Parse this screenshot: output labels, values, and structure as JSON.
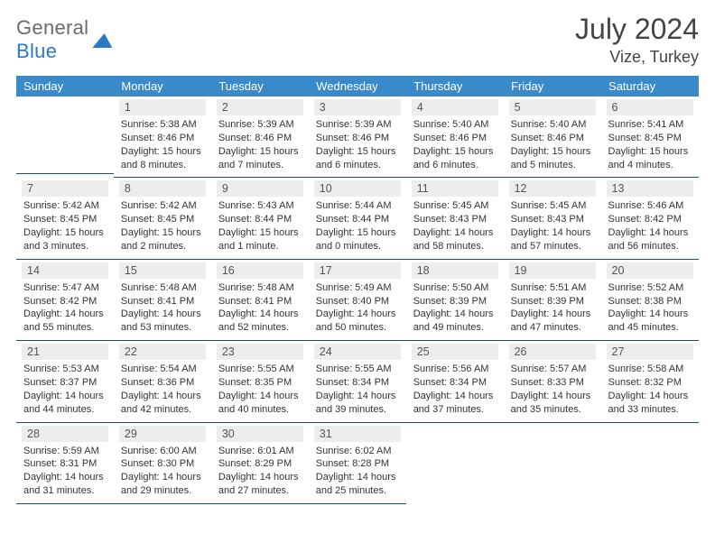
{
  "logo": {
    "text1": "General",
    "text2": "Blue"
  },
  "title": "July 2024",
  "location": "Vize, Turkey",
  "dow": [
    "Sunday",
    "Monday",
    "Tuesday",
    "Wednesday",
    "Thursday",
    "Friday",
    "Saturday"
  ],
  "colors": {
    "header_bg": "#3a8ac9",
    "header_text": "#ffffff",
    "daynum_bg": "#ededed",
    "rule": "#1b4f72",
    "logo_gray": "#6b6b6b",
    "logo_blue": "#2a7abf"
  },
  "weeks": [
    [
      null,
      {
        "n": "1",
        "sr": "5:38 AM",
        "ss": "8:46 PM",
        "dl": "15 hours and 8 minutes."
      },
      {
        "n": "2",
        "sr": "5:39 AM",
        "ss": "8:46 PM",
        "dl": "15 hours and 7 minutes."
      },
      {
        "n": "3",
        "sr": "5:39 AM",
        "ss": "8:46 PM",
        "dl": "15 hours and 6 minutes."
      },
      {
        "n": "4",
        "sr": "5:40 AM",
        "ss": "8:46 PM",
        "dl": "15 hours and 6 minutes."
      },
      {
        "n": "5",
        "sr": "5:40 AM",
        "ss": "8:46 PM",
        "dl": "15 hours and 5 minutes."
      },
      {
        "n": "6",
        "sr": "5:41 AM",
        "ss": "8:45 PM",
        "dl": "15 hours and 4 minutes."
      }
    ],
    [
      {
        "n": "7",
        "sr": "5:42 AM",
        "ss": "8:45 PM",
        "dl": "15 hours and 3 minutes."
      },
      {
        "n": "8",
        "sr": "5:42 AM",
        "ss": "8:45 PM",
        "dl": "15 hours and 2 minutes."
      },
      {
        "n": "9",
        "sr": "5:43 AM",
        "ss": "8:44 PM",
        "dl": "15 hours and 1 minute."
      },
      {
        "n": "10",
        "sr": "5:44 AM",
        "ss": "8:44 PM",
        "dl": "15 hours and 0 minutes."
      },
      {
        "n": "11",
        "sr": "5:45 AM",
        "ss": "8:43 PM",
        "dl": "14 hours and 58 minutes."
      },
      {
        "n": "12",
        "sr": "5:45 AM",
        "ss": "8:43 PM",
        "dl": "14 hours and 57 minutes."
      },
      {
        "n": "13",
        "sr": "5:46 AM",
        "ss": "8:42 PM",
        "dl": "14 hours and 56 minutes."
      }
    ],
    [
      {
        "n": "14",
        "sr": "5:47 AM",
        "ss": "8:42 PM",
        "dl": "14 hours and 55 minutes."
      },
      {
        "n": "15",
        "sr": "5:48 AM",
        "ss": "8:41 PM",
        "dl": "14 hours and 53 minutes."
      },
      {
        "n": "16",
        "sr": "5:48 AM",
        "ss": "8:41 PM",
        "dl": "14 hours and 52 minutes."
      },
      {
        "n": "17",
        "sr": "5:49 AM",
        "ss": "8:40 PM",
        "dl": "14 hours and 50 minutes."
      },
      {
        "n": "18",
        "sr": "5:50 AM",
        "ss": "8:39 PM",
        "dl": "14 hours and 49 minutes."
      },
      {
        "n": "19",
        "sr": "5:51 AM",
        "ss": "8:39 PM",
        "dl": "14 hours and 47 minutes."
      },
      {
        "n": "20",
        "sr": "5:52 AM",
        "ss": "8:38 PM",
        "dl": "14 hours and 45 minutes."
      }
    ],
    [
      {
        "n": "21",
        "sr": "5:53 AM",
        "ss": "8:37 PM",
        "dl": "14 hours and 44 minutes."
      },
      {
        "n": "22",
        "sr": "5:54 AM",
        "ss": "8:36 PM",
        "dl": "14 hours and 42 minutes."
      },
      {
        "n": "23",
        "sr": "5:55 AM",
        "ss": "8:35 PM",
        "dl": "14 hours and 40 minutes."
      },
      {
        "n": "24",
        "sr": "5:55 AM",
        "ss": "8:34 PM",
        "dl": "14 hours and 39 minutes."
      },
      {
        "n": "25",
        "sr": "5:56 AM",
        "ss": "8:34 PM",
        "dl": "14 hours and 37 minutes."
      },
      {
        "n": "26",
        "sr": "5:57 AM",
        "ss": "8:33 PM",
        "dl": "14 hours and 35 minutes."
      },
      {
        "n": "27",
        "sr": "5:58 AM",
        "ss": "8:32 PM",
        "dl": "14 hours and 33 minutes."
      }
    ],
    [
      {
        "n": "28",
        "sr": "5:59 AM",
        "ss": "8:31 PM",
        "dl": "14 hours and 31 minutes."
      },
      {
        "n": "29",
        "sr": "6:00 AM",
        "ss": "8:30 PM",
        "dl": "14 hours and 29 minutes."
      },
      {
        "n": "30",
        "sr": "6:01 AM",
        "ss": "8:29 PM",
        "dl": "14 hours and 27 minutes."
      },
      {
        "n": "31",
        "sr": "6:02 AM",
        "ss": "8:28 PM",
        "dl": "14 hours and 25 minutes."
      },
      null,
      null,
      null
    ]
  ],
  "labels": {
    "sunrise": "Sunrise:",
    "sunset": "Sunset:",
    "daylight": "Daylight:"
  }
}
